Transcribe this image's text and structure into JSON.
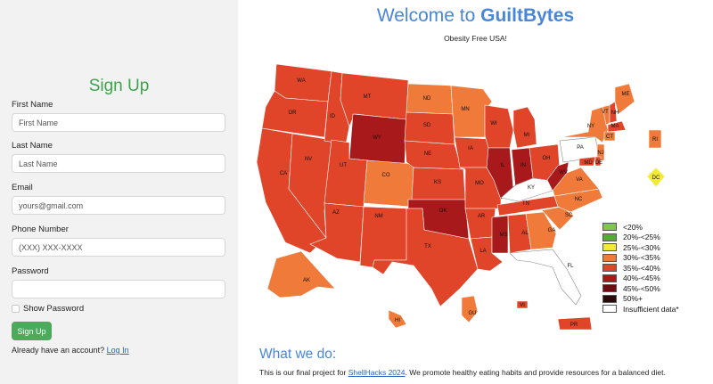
{
  "signup": {
    "title": "Sign Up",
    "fields": [
      {
        "label": "First Name",
        "placeholder": "First Name",
        "value": ""
      },
      {
        "label": "Last Name",
        "placeholder": "Last Name",
        "value": ""
      },
      {
        "label": "Email",
        "placeholder": "yours@gmail.com",
        "value": ""
      },
      {
        "label": "Phone Number",
        "placeholder": "(XXX) XXX-XXXX",
        "value": ""
      },
      {
        "label": "Password",
        "placeholder": "",
        "value": ""
      }
    ],
    "show_password_label": "Show Password",
    "show_password_checked": false,
    "submit_label": "Sign Up",
    "login_prompt": "Already have an account?",
    "login_link": "Log In"
  },
  "header": {
    "welcome_prefix": "Welcome to ",
    "brand": "GuiltBytes",
    "tagline": "Obesity Free USA!"
  },
  "map": {
    "states": [
      "WA",
      "OR",
      "CA",
      "NV",
      "ID",
      "MT",
      "WY",
      "UT",
      "AZ",
      "CO",
      "NM",
      "ND",
      "SD",
      "NE",
      "KS",
      "OK",
      "TX",
      "MN",
      "IA",
      "MO",
      "AR",
      "LA",
      "WI",
      "IL",
      "MS",
      "AL",
      "MI",
      "IN",
      "KY",
      "TN",
      "GA",
      "FL",
      "OH",
      "WV",
      "VA",
      "NC",
      "SC",
      "PA",
      "NY",
      "VT",
      "NH",
      "ME",
      "MA",
      "CT",
      "RI",
      "NJ",
      "MD",
      "DE",
      "DC",
      "AK",
      "HI",
      "GU",
      "VI",
      "PR"
    ],
    "legend": [
      {
        "label": "<20%",
        "color": "#7ec850"
      },
      {
        "label": "20%-<25%",
        "color": "#5aa83a"
      },
      {
        "label": "25%-<30%",
        "color": "#f2ea35"
      },
      {
        "label": "30%-<35%",
        "color": "#f07a3a"
      },
      {
        "label": "35%-<40%",
        "color": "#e0452a"
      },
      {
        "label": "40%-<45%",
        "color": "#a8191c"
      },
      {
        "label": "45%-<50%",
        "color": "#6e0c12"
      },
      {
        "label": "50%+",
        "color": "#2b0a0a"
      },
      {
        "label": "Insufficient data*",
        "color": "#ffffff"
      }
    ]
  },
  "about": {
    "title": "What we do:",
    "text_before": "This is our final project for ",
    "link": "ShellHacks 2024",
    "text_after": ". We promote healthy eating habits and provide resources for a balanced diet."
  }
}
